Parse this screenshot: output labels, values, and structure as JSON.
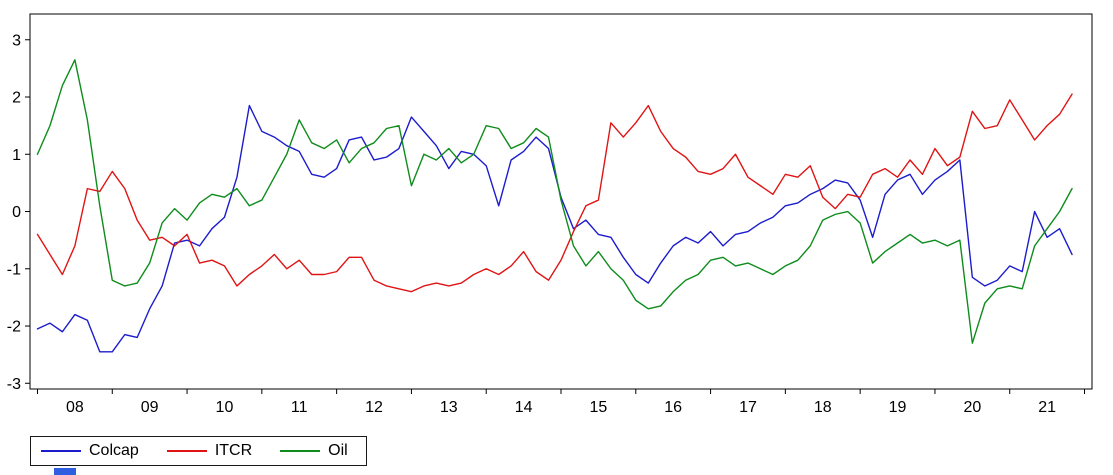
{
  "chart_data": {
    "type": "line",
    "title": "",
    "xlabel": "",
    "ylabel": "",
    "grid": false,
    "frame": true,
    "legend_position": "bottom-left",
    "xlim": [
      2007.9,
      2022.1
    ],
    "ylim": [
      -3.1,
      3.45
    ],
    "yticks": [
      -3,
      -2,
      -1,
      0,
      1,
      2,
      3
    ],
    "ytick_labels": [
      "-3",
      "-2",
      "-1",
      "0",
      "1",
      "2",
      "3"
    ],
    "xtick_boundaries": [
      2008,
      2009,
      2010,
      2011,
      2012,
      2013,
      2014,
      2015,
      2016,
      2017,
      2018,
      2019,
      2020,
      2021,
      2022
    ],
    "xtick_centers": [
      2008.5,
      2009.5,
      2010.5,
      2011.5,
      2012.5,
      2013.5,
      2014.5,
      2015.5,
      2016.5,
      2017.5,
      2018.5,
      2019.5,
      2020.5,
      2021.5
    ],
    "xtick_labels": [
      "08",
      "09",
      "10",
      "11",
      "12",
      "13",
      "14",
      "15",
      "16",
      "17",
      "18",
      "19",
      "20",
      "21"
    ],
    "x": [
      2008,
      2008.167,
      2008.333,
      2008.5,
      2008.667,
      2008.833,
      2009,
      2009.167,
      2009.333,
      2009.5,
      2009.667,
      2009.833,
      2010,
      2010.167,
      2010.333,
      2010.5,
      2010.667,
      2010.833,
      2011,
      2011.167,
      2011.333,
      2011.5,
      2011.667,
      2011.833,
      2012,
      2012.167,
      2012.333,
      2012.5,
      2012.667,
      2012.833,
      2013,
      2013.167,
      2013.333,
      2013.5,
      2013.667,
      2013.833,
      2014,
      2014.167,
      2014.333,
      2014.5,
      2014.667,
      2014.833,
      2015,
      2015.167,
      2015.333,
      2015.5,
      2015.667,
      2015.833,
      2016,
      2016.167,
      2016.333,
      2016.5,
      2016.667,
      2016.833,
      2017,
      2017.167,
      2017.333,
      2017.5,
      2017.667,
      2017.833,
      2018,
      2018.167,
      2018.333,
      2018.5,
      2018.667,
      2018.833,
      2019,
      2019.167,
      2019.333,
      2019.5,
      2019.667,
      2019.833,
      2020,
      2020.167,
      2020.333,
      2020.5,
      2020.667,
      2020.833,
      2021,
      2021.167,
      2021.333,
      2021.5,
      2021.667,
      2021.833
    ],
    "series": [
      {
        "name": "Colcap",
        "color": "#1c1ccd",
        "values": [
          -2.05,
          -1.95,
          -2.1,
          -1.8,
          -1.9,
          -2.45,
          -2.45,
          -2.15,
          -2.2,
          -1.7,
          -1.3,
          -0.55,
          -0.5,
          -0.6,
          -0.3,
          -0.1,
          0.6,
          1.85,
          1.4,
          1.3,
          1.15,
          1.05,
          0.65,
          0.6,
          0.75,
          1.25,
          1.3,
          0.9,
          0.95,
          1.1,
          1.65,
          1.4,
          1.15,
          0.75,
          1.05,
          1.0,
          0.8,
          0.1,
          0.9,
          1.05,
          1.3,
          1.1,
          0.25,
          -0.3,
          -0.15,
          -0.4,
          -0.45,
          -0.8,
          -1.1,
          -1.25,
          -0.9,
          -0.6,
          -0.45,
          -0.55,
          -0.35,
          -0.6,
          -0.4,
          -0.35,
          -0.2,
          -0.1,
          0.1,
          0.15,
          0.3,
          0.4,
          0.55,
          0.5,
          0.2,
          -0.45,
          0.3,
          0.55,
          0.65,
          0.3,
          0.55,
          0.7,
          0.9,
          -1.15,
          -1.3,
          -1.2,
          -0.95,
          -1.05,
          0.0,
          -0.45,
          -0.3,
          -0.75
        ]
      },
      {
        "name": "ITCR",
        "color": "#e01414",
        "values": [
          -0.4,
          -0.75,
          -1.1,
          -0.6,
          0.4,
          0.35,
          0.7,
          0.4,
          -0.15,
          -0.5,
          -0.45,
          -0.6,
          -0.4,
          -0.9,
          -0.85,
          -0.95,
          -1.3,
          -1.1,
          -0.95,
          -0.75,
          -1.0,
          -0.85,
          -1.1,
          -1.1,
          -1.05,
          -0.8,
          -0.8,
          -1.2,
          -1.3,
          -1.35,
          -1.4,
          -1.3,
          -1.25,
          -1.3,
          -1.25,
          -1.1,
          -1.0,
          -1.1,
          -0.95,
          -0.7,
          -1.05,
          -1.2,
          -0.85,
          -0.35,
          0.1,
          0.2,
          1.55,
          1.3,
          1.55,
          1.85,
          1.4,
          1.1,
          0.95,
          0.7,
          0.65,
          0.75,
          1.0,
          0.6,
          0.45,
          0.3,
          0.65,
          0.6,
          0.8,
          0.25,
          0.05,
          0.3,
          0.25,
          0.65,
          0.75,
          0.6,
          0.9,
          0.65,
          1.1,
          0.8,
          0.95,
          1.75,
          1.45,
          1.5,
          1.95,
          1.6,
          1.25,
          1.5,
          1.7,
          2.05
        ]
      },
      {
        "name": "Oil",
        "color": "#0e8c1c",
        "values": [
          1.0,
          1.5,
          2.2,
          2.65,
          1.6,
          0.1,
          -1.2,
          -1.3,
          -1.25,
          -0.9,
          -0.2,
          0.05,
          -0.15,
          0.15,
          0.3,
          0.25,
          0.4,
          0.1,
          0.2,
          0.6,
          1.0,
          1.6,
          1.2,
          1.1,
          1.25,
          0.85,
          1.1,
          1.2,
          1.45,
          1.5,
          0.45,
          1.0,
          0.9,
          1.1,
          0.85,
          1.0,
          1.5,
          1.45,
          1.1,
          1.2,
          1.45,
          1.3,
          0.2,
          -0.6,
          -0.95,
          -0.7,
          -1.0,
          -1.2,
          -1.55,
          -1.7,
          -1.65,
          -1.4,
          -1.2,
          -1.1,
          -0.85,
          -0.8,
          -0.95,
          -0.9,
          -1.0,
          -1.1,
          -0.95,
          -0.85,
          -0.6,
          -0.15,
          -0.05,
          0.0,
          -0.2,
          -0.9,
          -0.7,
          -0.55,
          -0.4,
          -0.55,
          -0.5,
          -0.6,
          -0.5,
          -2.3,
          -1.6,
          -1.35,
          -1.3,
          -1.35,
          -0.6,
          -0.3,
          0.0,
          0.4
        ]
      }
    ]
  },
  "legend": {
    "entries": [
      {
        "label": "Colcap",
        "color": "#1c1ccd"
      },
      {
        "label": "ITCR",
        "color": "#e01414"
      },
      {
        "label": "Oil",
        "color": "#0e8c1c"
      }
    ]
  },
  "ui": {
    "axis_color": "#000000",
    "background_color": "#ffffff",
    "artifact_color": "#2f5fe0"
  }
}
